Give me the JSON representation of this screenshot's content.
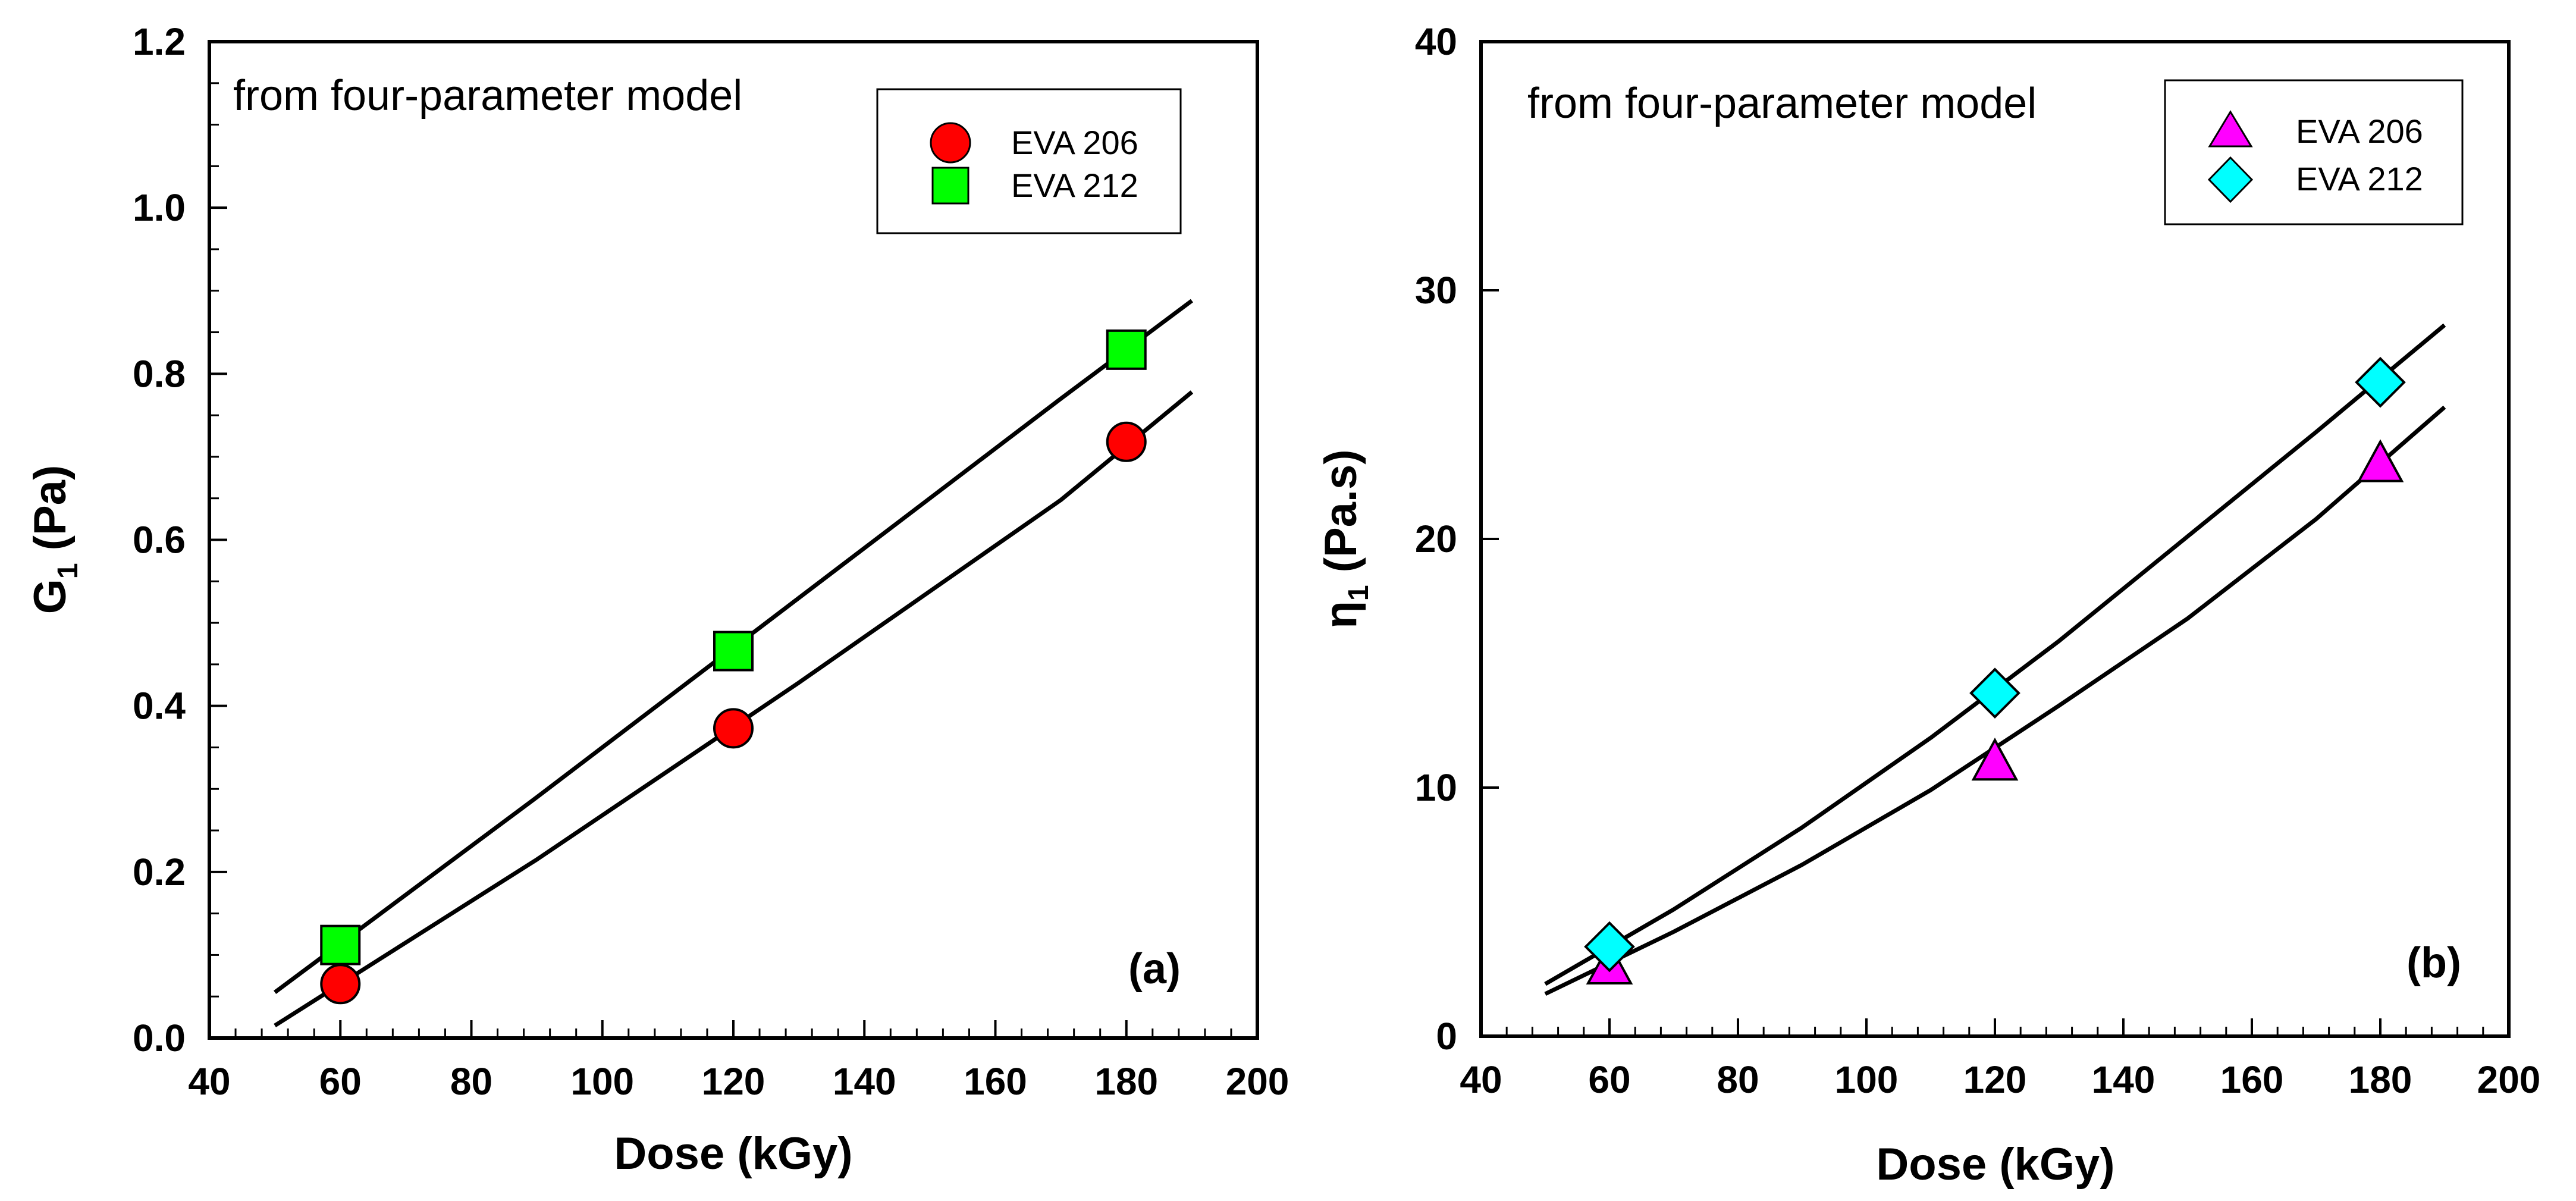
{
  "chart_data": [
    {
      "type": "scatter",
      "title": "",
      "annotation": "from four-parameter model",
      "panel_label": "(a)",
      "xlabel": "Dose (kGy)",
      "ylabel": {
        "main": "G",
        "sub": "1",
        "unit": " (Pa)"
      },
      "xlim": [
        40,
        200
      ],
      "ylim": [
        0,
        1.2
      ],
      "xticks": [
        40,
        60,
        80,
        100,
        120,
        140,
        160,
        180,
        200
      ],
      "yticks": [
        0.0,
        0.2,
        0.4,
        0.6,
        0.8,
        1.0,
        1.2
      ],
      "xtick_labels": [
        "40",
        "60",
        "80",
        "100",
        "120",
        "140",
        "160",
        "180",
        "200"
      ],
      "ytick_labels": [
        "0.0",
        "0.2",
        "0.4",
        "0.6",
        "0.8",
        "1.0",
        "1.2"
      ],
      "grid": false,
      "legend_position": "top-right",
      "series": [
        {
          "name": "EVA 206",
          "marker": "circle",
          "color": "#ff0000",
          "x": [
            60,
            120,
            180
          ],
          "y": [
            0.065,
            0.373,
            0.718
          ],
          "fit": {
            "x": [
              50,
              90,
              130,
              170,
              190
            ],
            "y": [
              0.015,
              0.215,
              0.428,
              0.648,
              0.778
            ]
          }
        },
        {
          "name": "EVA 212",
          "marker": "square",
          "color": "#00ff00",
          "x": [
            60,
            120,
            180
          ],
          "y": [
            0.112,
            0.466,
            0.829
          ],
          "fit": {
            "x": [
              50,
              90,
              130,
              170,
              190
            ],
            "y": [
              0.055,
              0.29,
              0.53,
              0.77,
              0.888
            ]
          }
        }
      ]
    },
    {
      "type": "scatter",
      "title": "",
      "annotation": "from four-parameter model",
      "panel_label": "(b)",
      "xlabel": "Dose (kGy)",
      "ylabel": {
        "main": "η",
        "sub": "1",
        "unit": " (Pa.s)"
      },
      "xlim": [
        40,
        200
      ],
      "ylim": [
        0,
        40
      ],
      "xticks": [
        40,
        60,
        80,
        100,
        120,
        140,
        160,
        180,
        200
      ],
      "yticks": [
        0,
        10,
        20,
        30,
        40
      ],
      "xtick_labels": [
        "40",
        "60",
        "80",
        "100",
        "120",
        "140",
        "160",
        "180",
        "200"
      ],
      "ytick_labels": [
        "0",
        "10",
        "20",
        "30",
        "40"
      ],
      "grid": false,
      "legend_position": "top-right",
      "series": [
        {
          "name": "EVA 206",
          "marker": "triangle",
          "color": "#ff00ff",
          "x": [
            60,
            120,
            180
          ],
          "y": [
            2.8,
            11.0,
            23.0
          ],
          "fit": {
            "x": [
              50,
              70,
              90,
              110,
              130,
              150,
              170,
              190
            ],
            "y": [
              1.7,
              4.2,
              6.9,
              9.9,
              13.3,
              16.8,
              20.8,
              25.3
            ]
          }
        },
        {
          "name": "EVA 212",
          "marker": "diamond",
          "color": "#00ffff",
          "x": [
            60,
            120,
            180
          ],
          "y": [
            3.6,
            13.8,
            26.3
          ],
          "fit": {
            "x": [
              50,
              70,
              90,
              110,
              130,
              150,
              170,
              190
            ],
            "y": [
              2.1,
              5.1,
              8.4,
              12.0,
              15.9,
              20.1,
              24.3,
              28.6
            ]
          }
        }
      ]
    }
  ]
}
